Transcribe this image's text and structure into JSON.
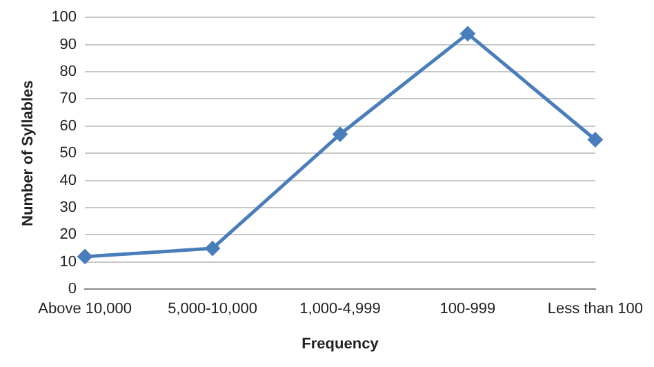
{
  "chart_data": {
    "type": "line",
    "xlabel": "Frequency",
    "ylabel": "Number of Syllables",
    "categories": [
      "Above 10,000",
      "5,000-10,000",
      "1,000-4,999",
      "100-999",
      "Less than 100"
    ],
    "series": [
      {
        "color": "#4a7ebb",
        "values": [
          12,
          15,
          57,
          94,
          55
        ]
      }
    ],
    "ylim": [
      0,
      100
    ],
    "yticks": [
      0,
      10,
      20,
      30,
      40,
      50,
      60,
      70,
      80,
      90,
      100
    ],
    "grid": "y",
    "legend": false,
    "marker": "diamond",
    "line_style": "solid"
  }
}
